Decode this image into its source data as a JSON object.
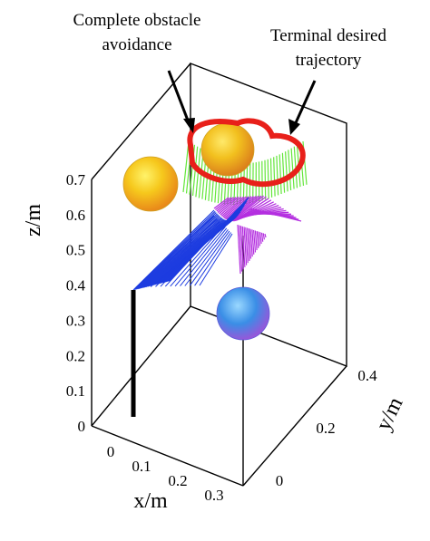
{
  "chart_data": {
    "type": "3d-line",
    "annotations": [
      "Complete obstacle",
      "avoidance",
      "Terminal desired",
      "trajectory"
    ],
    "z_label": "z/m",
    "x_label": "x/m",
    "y_label": "y/m",
    "z_ticks": [
      "0",
      "0.1",
      "0.2",
      "0.3",
      "0.4",
      "0.5",
      "0.6",
      "0.7"
    ],
    "x_ticks": [
      "0",
      "0.1",
      "0.2",
      "0.3"
    ],
    "y_ticks": [
      "0",
      "0.2",
      "0.4"
    ],
    "zlim": [
      0,
      0.7
    ],
    "xlim": [
      0,
      0.3
    ],
    "ylim": [
      0,
      0.4
    ],
    "grid": false,
    "base_link": {
      "x": 0.05,
      "y": 0.0,
      "z_bottom": 0.0,
      "z_top": 0.4
    },
    "obstacles": [
      {
        "name": "",
        "x": 0.05,
        "y": 0.35,
        "z": 0.55,
        "color": "#f0c020"
      },
      {
        "name": "",
        "x": 0.2,
        "y": 0.4,
        "z": 0.65,
        "color": "#f6d21a"
      },
      {
        "name": "",
        "x": 0.25,
        "y": 0.15,
        "z": 0.32,
        "color": "#3a8ee6"
      }
    ],
    "colors": {
      "terminal_trajectory": "#e8201a",
      "link1_sweep": "#1d3ce0",
      "link2_sweep": "#b42fe0",
      "end_sweep": "#63e63a",
      "base_link": "#000000"
    }
  }
}
